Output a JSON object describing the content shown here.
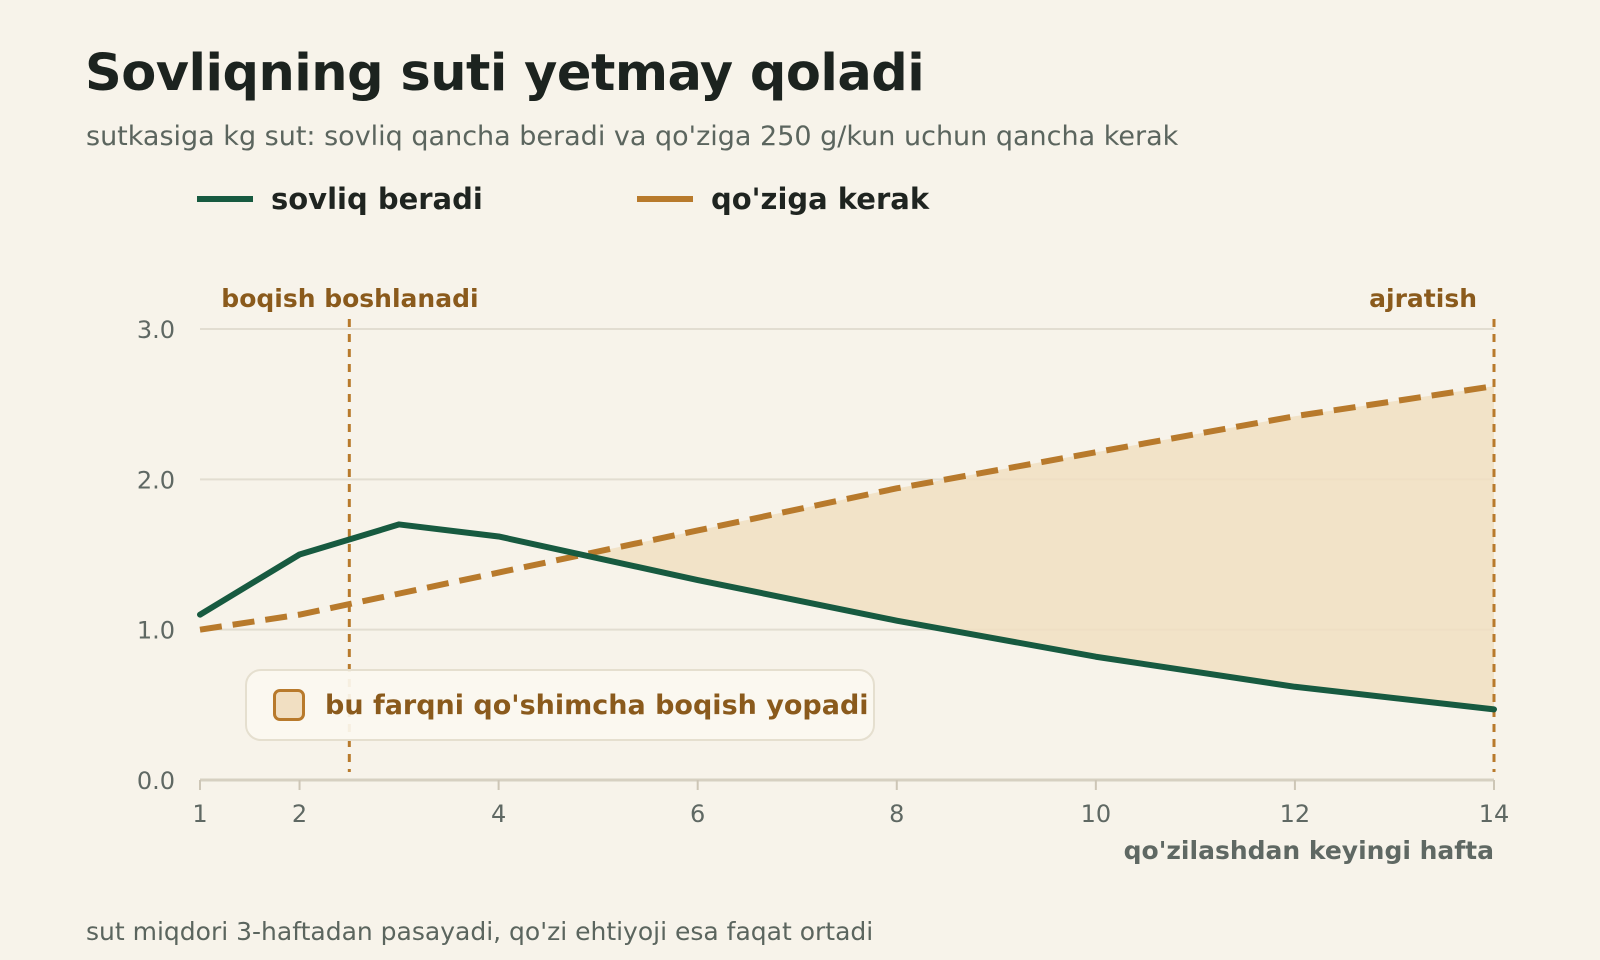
{
  "title": "Sovliqning suti yetmay qoladi",
  "subtitle": "sutkasiga kg sut: sovliq qancha beradi va qo'ziga 250 g/kun uchun qancha kerak",
  "footnote": "sut miqdori 3-haftadan pasayadi, qo'zi ehtiyoji esa faqat ortadi",
  "legend": [
    {
      "label": "sovliq beradi",
      "color": "#175a40",
      "style": "solid"
    },
    {
      "label": "qo'ziga kerak",
      "color": "#b87a2c",
      "style": "dashed"
    }
  ],
  "gap_note": {
    "label": "bu farqni qo'shimcha boqish yopadi",
    "fill": "#f1dfc2",
    "border": "#b87a2c"
  },
  "chart_data": {
    "type": "line",
    "xlabel": "qo'zilashdan keyingi hafta",
    "ylabel": "",
    "xlim": [
      1,
      14
    ],
    "ylim": [
      0,
      3
    ],
    "x_ticks": [
      1,
      2,
      4,
      6,
      8,
      10,
      12,
      14
    ],
    "y_ticks": [
      "0.0",
      "1.0",
      "2.0",
      "3.0"
    ],
    "grid": "horizontal",
    "legend_position": "top-left",
    "series": [
      {
        "name": "sovliq beradi",
        "color": "#175a40",
        "style": "solid",
        "x": [
          1,
          2,
          3,
          4,
          6,
          8,
          10,
          12,
          14
        ],
        "y": [
          1.1,
          1.5,
          1.7,
          1.62,
          1.33,
          1.06,
          0.82,
          0.62,
          0.47
        ]
      },
      {
        "name": "qo'ziga kerak",
        "color": "#b87a2c",
        "style": "dashed",
        "x": [
          1,
          2,
          4,
          6,
          8,
          10,
          12,
          14
        ],
        "y": [
          1.0,
          1.1,
          1.38,
          1.66,
          1.94,
          2.18,
          2.42,
          2.62
        ]
      }
    ],
    "shaded_gap": {
      "from_x": 4.85,
      "to_x": 14,
      "between": [
        "qo'ziga kerak",
        "sovliq beradi"
      ],
      "color": "#f1dfc2"
    },
    "markers": [
      {
        "x": 2.5,
        "label": "boqish boshlanadi"
      },
      {
        "x": 14,
        "label": "ajratish"
      }
    ]
  }
}
